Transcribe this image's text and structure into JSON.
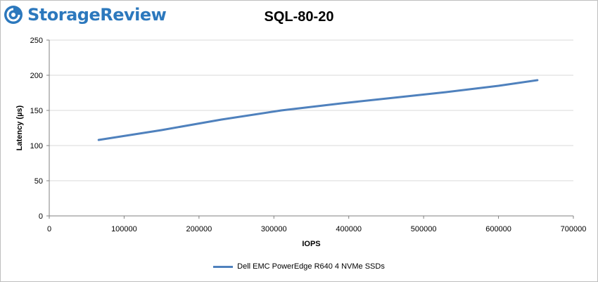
{
  "logo": {
    "text": "StorageReview"
  },
  "colors": {
    "series": "#4f81bd",
    "logo": "#2c78bd",
    "grid": "#d9d9d9"
  },
  "chart_data": {
    "type": "line",
    "title": "SQL-80-20",
    "xlabel": "IOPS",
    "ylabel": "Latency (µs)",
    "xlim": [
      0,
      700000
    ],
    "ylim": [
      0,
      250
    ],
    "xticks": [
      "0",
      "100000",
      "200000",
      "300000",
      "400000",
      "500000",
      "600000",
      "700000"
    ],
    "yticks": [
      "0",
      "50",
      "100",
      "150",
      "200",
      "250"
    ],
    "grid": "horizontal",
    "legend": "bottom",
    "series": [
      {
        "name": "Dell EMC PowerEdge R640 4 NVMe SSDs",
        "x": [
          66000,
          150000,
          230000,
          310000,
          390000,
          460000,
          530000,
          600000,
          652000
        ],
        "y": [
          108,
          122,
          137,
          150,
          160,
          168,
          176,
          185,
          193
        ]
      }
    ]
  }
}
